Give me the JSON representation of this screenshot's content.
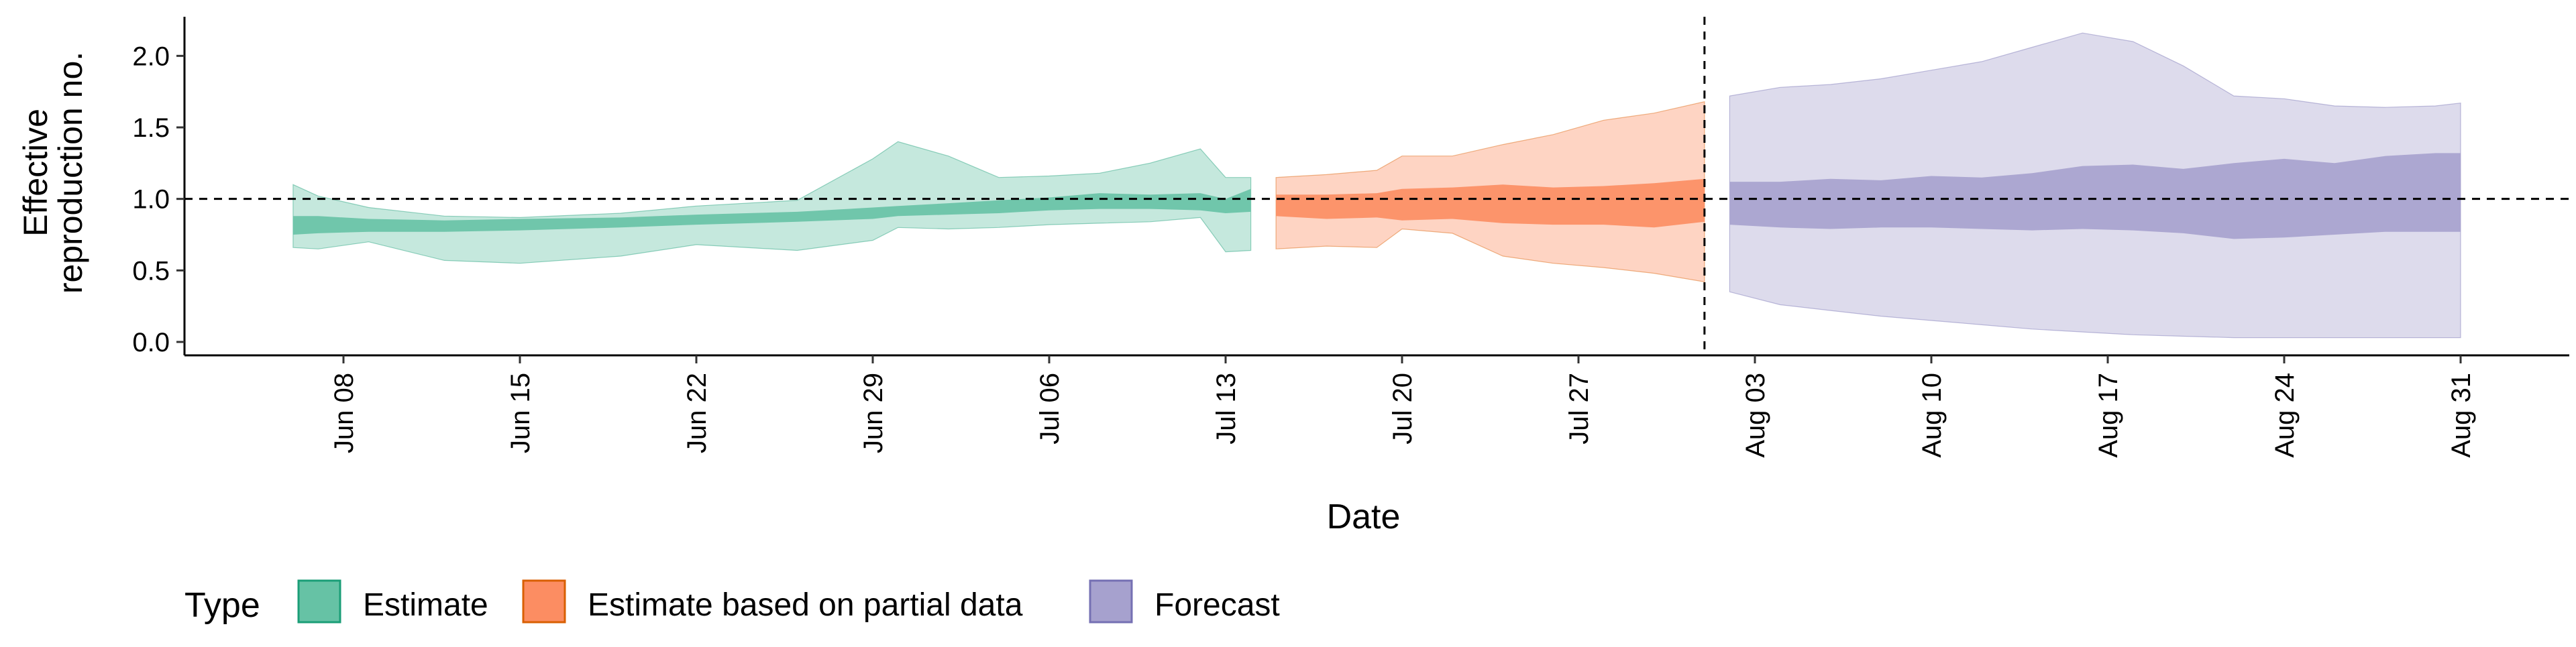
{
  "chart_data": {
    "type": "area",
    "xlabel": "Date",
    "ylabel_lines": [
      "Effective",
      "reproduction no."
    ],
    "ylim": [
      0,
      2.25
    ],
    "yticks": [
      0.0,
      0.5,
      1.0,
      1.5,
      2.0
    ],
    "ytick_labels": [
      "0.0",
      "0.5",
      "1.0",
      "1.5",
      "2.0"
    ],
    "xticks": [
      "2020-06-08",
      "2020-06-15",
      "2020-06-22",
      "2020-06-29",
      "2020-07-06",
      "2020-07-13",
      "2020-07-20",
      "2020-07-27",
      "2020-08-03",
      "2020-08-10",
      "2020-08-17",
      "2020-08-24",
      "2020-08-31"
    ],
    "xtick_labels": [
      "Jun 08",
      "Jun 15",
      "Jun 22",
      "Jun 29",
      "Jul 06",
      "Jul 13",
      "Jul 20",
      "Jul 27",
      "Aug 03",
      "Aug 10",
      "Aug 17",
      "Aug 24",
      "Aug 31"
    ],
    "reference_hline": 1.0,
    "forecast_date": "2020-08-01",
    "legend_title": "Type",
    "legend_position": "bottom-left",
    "series": [
      {
        "name": "Estimate",
        "color": "#66c2a5",
        "border_color": "#1b9e77",
        "x": [
          "2020-06-06",
          "2020-06-07",
          "2020-06-09",
          "2020-06-12",
          "2020-06-15",
          "2020-06-19",
          "2020-06-22",
          "2020-06-26",
          "2020-06-29",
          "2020-06-30",
          "2020-07-02",
          "2020-07-04",
          "2020-07-06",
          "2020-07-08",
          "2020-07-10",
          "2020-07-12",
          "2020-07-13",
          "2020-07-14"
        ],
        "outer_lower": [
          0.66,
          0.65,
          0.7,
          0.57,
          0.55,
          0.6,
          0.68,
          0.64,
          0.71,
          0.8,
          0.79,
          0.8,
          0.82,
          0.83,
          0.84,
          0.87,
          0.63,
          0.64
        ],
        "outer_upper": [
          1.1,
          1.02,
          0.94,
          0.88,
          0.87,
          0.9,
          0.95,
          0.99,
          1.28,
          1.4,
          1.3,
          1.15,
          1.16,
          1.18,
          1.25,
          1.35,
          1.15,
          1.15
        ],
        "inner_lower": [
          0.75,
          0.76,
          0.77,
          0.77,
          0.78,
          0.8,
          0.82,
          0.84,
          0.86,
          0.88,
          0.89,
          0.9,
          0.92,
          0.93,
          0.93,
          0.92,
          0.9,
          0.91
        ],
        "inner_upper": [
          0.88,
          0.88,
          0.86,
          0.85,
          0.86,
          0.87,
          0.89,
          0.91,
          0.94,
          0.95,
          0.97,
          0.99,
          1.01,
          1.04,
          1.03,
          1.04,
          1.0,
          1.07
        ]
      },
      {
        "name": "Estimate based on partial data",
        "color": "#fc8d62",
        "border_color": "#d95f02",
        "x": [
          "2020-07-15",
          "2020-07-17",
          "2020-07-19",
          "2020-07-20",
          "2020-07-22",
          "2020-07-24",
          "2020-07-26",
          "2020-07-28",
          "2020-07-30",
          "2020-08-01"
        ],
        "outer_lower": [
          0.65,
          0.67,
          0.66,
          0.79,
          0.76,
          0.6,
          0.55,
          0.52,
          0.48,
          0.42
        ],
        "outer_upper": [
          1.15,
          1.17,
          1.2,
          1.3,
          1.3,
          1.38,
          1.45,
          1.55,
          1.6,
          1.68
        ],
        "inner_lower": [
          0.88,
          0.86,
          0.87,
          0.85,
          0.86,
          0.83,
          0.82,
          0.82,
          0.8,
          0.84
        ],
        "inner_upper": [
          1.03,
          1.03,
          1.04,
          1.07,
          1.08,
          1.1,
          1.08,
          1.09,
          1.11,
          1.14
        ]
      },
      {
        "name": "Forecast",
        "color": "#8da0cb",
        "fill_color": "#a6a1ce",
        "border_color": "#7570b3",
        "x": [
          "2020-08-02",
          "2020-08-04",
          "2020-08-06",
          "2020-08-08",
          "2020-08-10",
          "2020-08-12",
          "2020-08-14",
          "2020-08-16",
          "2020-08-18",
          "2020-08-20",
          "2020-08-22",
          "2020-08-24",
          "2020-08-26",
          "2020-08-28",
          "2020-08-30",
          "2020-08-31"
        ],
        "outer_lower": [
          0.35,
          0.26,
          0.22,
          0.18,
          0.15,
          0.12,
          0.09,
          0.07,
          0.05,
          0.04,
          0.03,
          0.03,
          0.03,
          0.03,
          0.03,
          0.03
        ],
        "outer_upper": [
          1.72,
          1.78,
          1.8,
          1.84,
          1.9,
          1.96,
          2.06,
          2.16,
          2.1,
          1.93,
          1.72,
          1.7,
          1.65,
          1.64,
          1.65,
          1.67
        ],
        "inner_lower": [
          0.82,
          0.8,
          0.79,
          0.8,
          0.8,
          0.79,
          0.78,
          0.79,
          0.78,
          0.76,
          0.72,
          0.73,
          0.75,
          0.77,
          0.77,
          0.77
        ],
        "inner_upper": [
          1.12,
          1.12,
          1.14,
          1.13,
          1.16,
          1.15,
          1.18,
          1.23,
          1.24,
          1.21,
          1.25,
          1.28,
          1.25,
          1.3,
          1.32,
          1.32
        ]
      }
    ]
  }
}
